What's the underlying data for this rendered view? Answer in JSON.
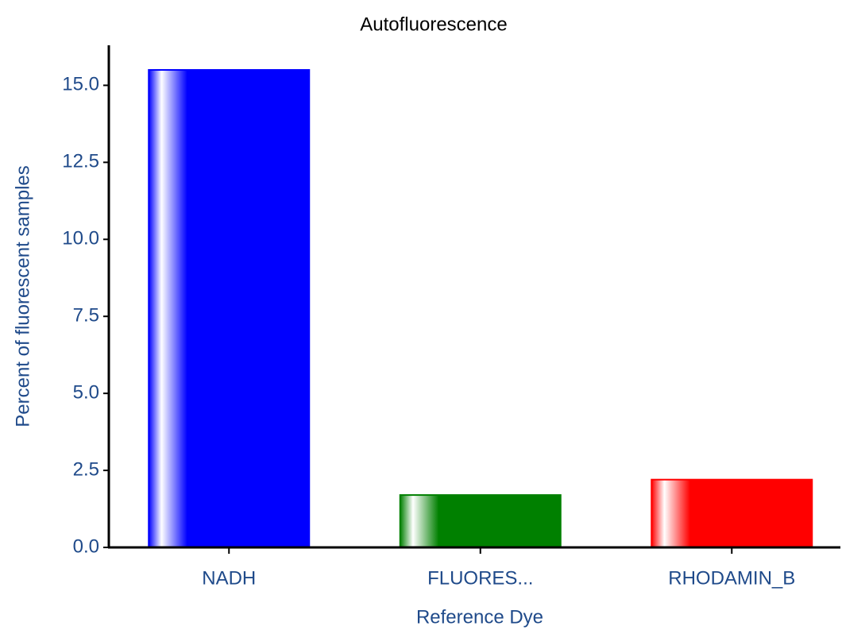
{
  "chart_data": {
    "type": "bar",
    "title": "Autofluorescence",
    "x_label": "Reference Dye",
    "y_label": "Percent of fluorescent samples",
    "categories": [
      "NADH",
      "FLUORES...",
      "RHODAMIN_B"
    ],
    "values": [
      15.5,
      1.7,
      2.2
    ],
    "colors": [
      "#0000ff",
      "#008000",
      "#ff0000"
    ],
    "ylim": [
      0,
      16.3
    ],
    "yticks": [
      {
        "value": 0,
        "label": "0.0"
      },
      2.5,
      {
        "value": 5,
        "label": "5.0"
      },
      7.5,
      {
        "value": 10,
        "label": "10.0"
      },
      12.5,
      {
        "value": 15,
        "label": "15.0"
      }
    ],
    "grid": false
  }
}
